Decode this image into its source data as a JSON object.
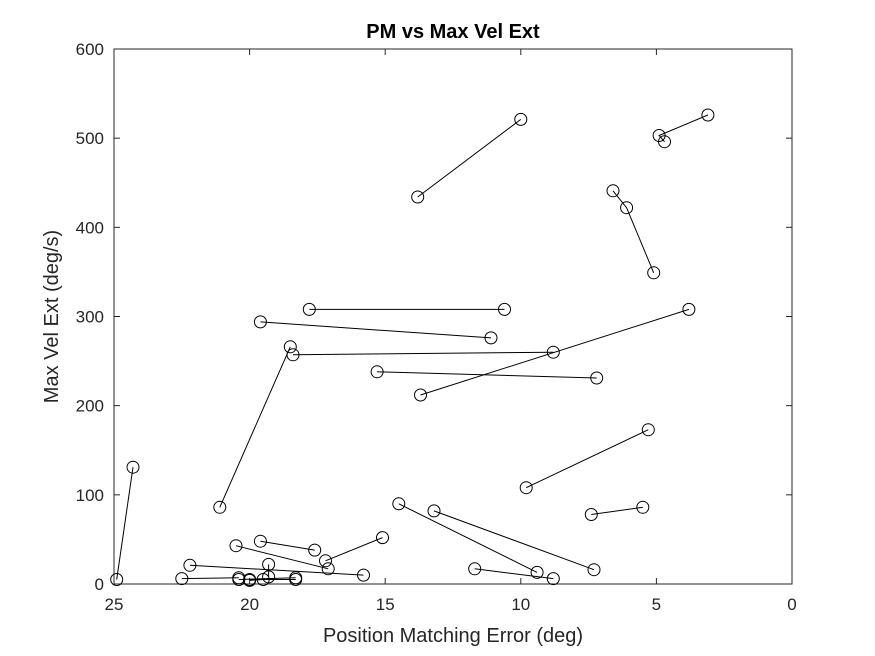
{
  "chart_data": {
    "type": "scatter",
    "title": "PM vs Max Vel Ext",
    "xlabel": "Position Matching Error (deg)",
    "ylabel": "Max Vel Ext (deg/s)",
    "xlim": [
      0,
      25
    ],
    "ylim": [
      0,
      600
    ],
    "x_reversed": true,
    "x_ticks": [
      25,
      20,
      15,
      10,
      5,
      0
    ],
    "y_ticks": [
      0,
      100,
      200,
      300,
      400,
      500,
      600
    ],
    "grid": false,
    "marker": "open-circle",
    "marker_color": "#000000",
    "line_color": "#000000",
    "pairs": [
      [
        [
          24.9,
          5
        ],
        [
          24.3,
          131
        ]
      ],
      [
        [
          13.8,
          434
        ],
        [
          10.0,
          521
        ]
      ],
      [
        [
          6.6,
          441
        ],
        [
          6.1,
          422
        ],
        [
          5.1,
          349
        ]
      ],
      [
        [
          3.1,
          526
        ],
        [
          4.9,
          503
        ],
        [
          4.7,
          496
        ]
      ],
      [
        [
          17.8,
          308
        ],
        [
          10.6,
          308
        ]
      ],
      [
        [
          19.6,
          294
        ],
        [
          11.1,
          276
        ]
      ],
      [
        [
          21.1,
          86
        ],
        [
          18.5,
          266
        ]
      ],
      [
        [
          18.4,
          257
        ],
        [
          8.8,
          260
        ]
      ],
      [
        [
          15.3,
          238
        ],
        [
          7.2,
          231
        ]
      ],
      [
        [
          13.7,
          212
        ],
        [
          3.8,
          308
        ]
      ],
      [
        [
          9.8,
          108
        ],
        [
          5.3,
          173
        ]
      ],
      [
        [
          7.4,
          78
        ],
        [
          5.5,
          86
        ]
      ],
      [
        [
          14.5,
          90
        ],
        [
          9.4,
          13
        ]
      ],
      [
        [
          13.2,
          82
        ],
        [
          7.3,
          16
        ]
      ],
      [
        [
          11.7,
          17
        ],
        [
          8.8,
          6
        ]
      ],
      [
        [
          19.6,
          48
        ],
        [
          17.6,
          38
        ]
      ],
      [
        [
          20.5,
          43
        ],
        [
          17.1,
          17
        ]
      ],
      [
        [
          17.2,
          26
        ],
        [
          15.1,
          52
        ]
      ],
      [
        [
          22.2,
          21
        ],
        [
          15.8,
          10
        ]
      ],
      [
        [
          19.3,
          22
        ],
        [
          19.3,
          8
        ]
      ],
      [
        [
          22.5,
          6
        ],
        [
          20.4,
          7
        ]
      ],
      [
        [
          20.4,
          5
        ],
        [
          18.3,
          7
        ]
      ],
      [
        [
          20.0,
          4
        ],
        [
          19.5,
          5
        ]
      ],
      [
        [
          20.0,
          5
        ],
        [
          18.3,
          5
        ]
      ]
    ]
  }
}
